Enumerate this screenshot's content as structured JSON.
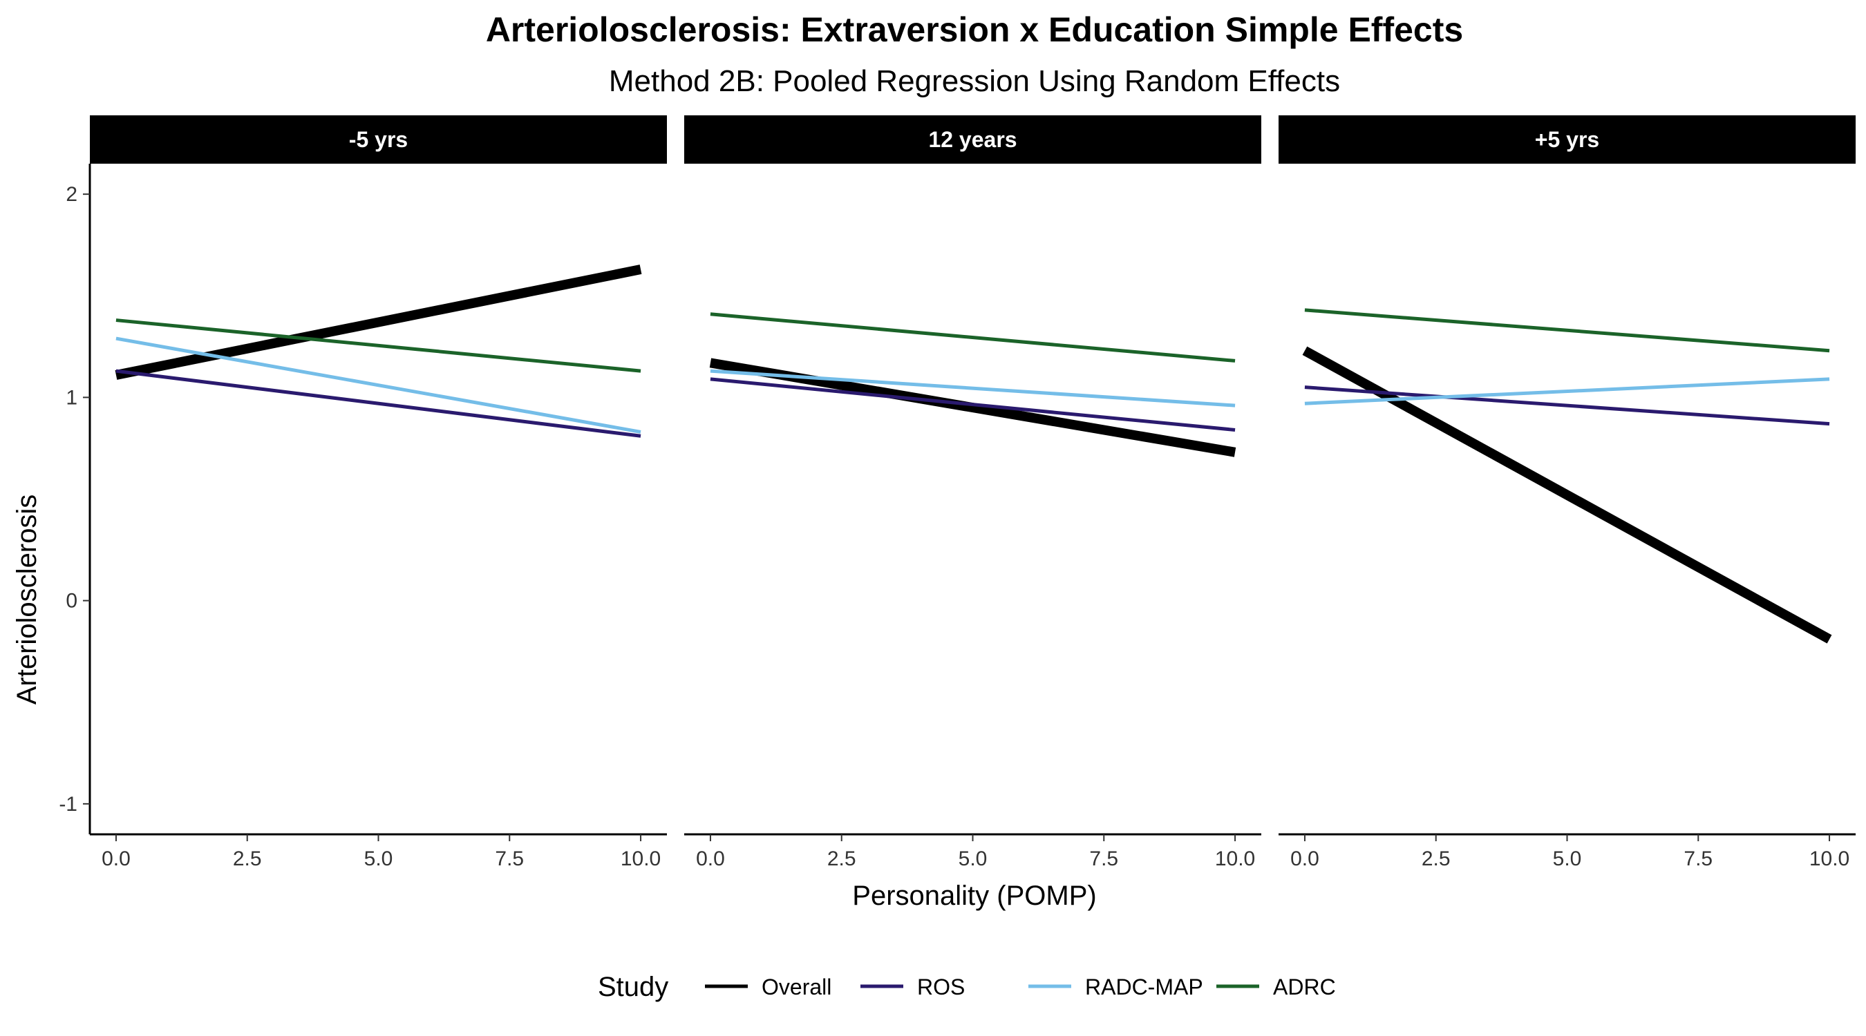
{
  "chart_data": {
    "type": "line",
    "title": "Arteriolosclerosis: Extraversion x Education Simple Effects",
    "subtitle": "Method 2B: Pooled Regression Using Random Effects",
    "xlabel": "Personality (POMP)",
    "ylabel": "Arteriolosclerosis",
    "xlim": [
      -0.5,
      10.5
    ],
    "ylim": [
      -1.15,
      2.15
    ],
    "x_ticks": [
      0,
      2.5,
      5,
      7.5,
      10
    ],
    "x_tick_labels": [
      "0.0",
      "2.5",
      "5.0",
      "7.5",
      "10.0"
    ],
    "y_ticks": [
      -1,
      0,
      1,
      2
    ],
    "y_tick_labels": [
      "-1",
      "0",
      "1",
      "2"
    ],
    "grid": false,
    "legend": {
      "title": "Study",
      "position": "bottom",
      "entries": [
        "Overall",
        "ROS",
        "RADC-MAP",
        "ADRC"
      ]
    },
    "series_colors": {
      "Overall": "#000000",
      "ROS": "#2a1a6e",
      "RADC-MAP": "#74bde8",
      "ADRC": "#1b6329"
    },
    "panels": [
      {
        "label": "-5 yrs",
        "series": [
          {
            "name": "Overall",
            "x": [
              0,
              10
            ],
            "y": [
              1.11,
              1.63
            ]
          },
          {
            "name": "ROS",
            "x": [
              0,
              10
            ],
            "y": [
              1.13,
              0.81
            ]
          },
          {
            "name": "RADC-MAP",
            "x": [
              0,
              10
            ],
            "y": [
              1.29,
              0.83
            ]
          },
          {
            "name": "ADRC",
            "x": [
              0,
              10
            ],
            "y": [
              1.38,
              1.13
            ]
          }
        ]
      },
      {
        "label": "12 years",
        "series": [
          {
            "name": "Overall",
            "x": [
              0,
              10
            ],
            "y": [
              1.17,
              0.73
            ]
          },
          {
            "name": "ROS",
            "x": [
              0,
              10
            ],
            "y": [
              1.09,
              0.84
            ]
          },
          {
            "name": "RADC-MAP",
            "x": [
              0,
              10
            ],
            "y": [
              1.13,
              0.96
            ]
          },
          {
            "name": "ADRC",
            "x": [
              0,
              10
            ],
            "y": [
              1.41,
              1.18
            ]
          }
        ]
      },
      {
        "label": "+5 yrs",
        "series": [
          {
            "name": "Overall",
            "x": [
              0,
              10
            ],
            "y": [
              1.23,
              -0.19
            ]
          },
          {
            "name": "ROS",
            "x": [
              0,
              10
            ],
            "y": [
              1.05,
              0.87
            ]
          },
          {
            "name": "RADC-MAP",
            "x": [
              0,
              10
            ],
            "y": [
              0.97,
              1.09
            ]
          },
          {
            "name": "ADRC",
            "x": [
              0,
              10
            ],
            "y": [
              1.43,
              1.23
            ]
          }
        ]
      }
    ]
  }
}
